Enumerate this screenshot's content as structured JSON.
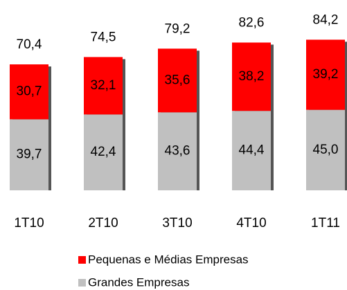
{
  "chart_data": {
    "type": "stacked_bar",
    "categories": [
      "1T10",
      "2T10",
      "3T10",
      "4T10",
      "1T11"
    ],
    "series": [
      {
        "name": "Pequenas e Médias Empresas",
        "color": "#ff0000",
        "values": [
          30.7,
          32.1,
          35.6,
          38.2,
          39.2
        ],
        "value_labels": [
          "30,7",
          "32,1",
          "35,6",
          "38,2",
          "39,2"
        ]
      },
      {
        "name": "Grandes Empresas",
        "color": "#c0c0c0",
        "values": [
          39.7,
          42.4,
          43.6,
          44.4,
          45.0
        ],
        "value_labels": [
          "39,7",
          "42,4",
          "43,6",
          "44,4",
          "45,0"
        ]
      }
    ],
    "totals": [
      70.4,
      74.5,
      79.2,
      82.6,
      84.2
    ],
    "total_labels": [
      "70,4",
      "74,5",
      "79,2",
      "82,6",
      "84,2"
    ],
    "stack_order": "bottom_up_reverse_legend"
  }
}
